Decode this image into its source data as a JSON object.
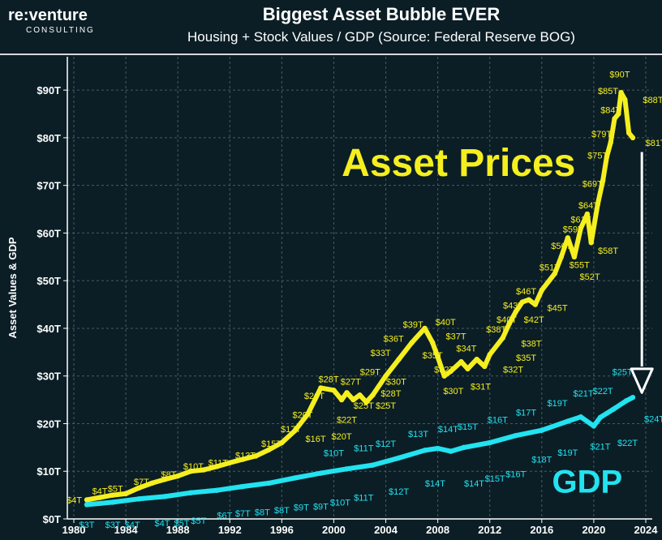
{
  "header": {
    "logo_main": "re:venture",
    "logo_sub": "CONSULTING",
    "title": "Biggest Asset Bubble EVER",
    "subtitle": "Housing + Stock Values / GDP (Source: Federal Reserve BOG)"
  },
  "colors": {
    "background": "#0b1e26",
    "asset": "#f5ef1f",
    "gdp": "#22e3f0",
    "grid": "#4a5a60",
    "text": "#ffffff"
  },
  "chart_data": {
    "type": "line",
    "ylabel": "Asset Values & GDP",
    "xlabel": "",
    "xlim": [
      1979.5,
      2024.5
    ],
    "ylim": [
      0,
      97
    ],
    "x_ticks": [
      1980,
      1984,
      1988,
      1992,
      1996,
      2000,
      2004,
      2008,
      2012,
      2016,
      2020,
      2024
    ],
    "y_ticks": [
      0,
      10,
      20,
      30,
      40,
      50,
      60,
      70,
      80,
      90
    ],
    "y_tick_labels": [
      "$0T",
      "$10T",
      "$20T",
      "$30T",
      "$40T",
      "$50T",
      "$60T",
      "$70T",
      "$80T",
      "$90T"
    ],
    "grid": true,
    "annotations": [
      {
        "text": "Asset Prices",
        "series": "asset"
      },
      {
        "text": "GDP",
        "series": "gdp"
      }
    ],
    "series": [
      {
        "key": "asset",
        "points": [
          [
            1981,
            4.0
          ],
          [
            1982,
            4.5
          ],
          [
            1983,
            5.0
          ],
          [
            1984,
            5.3
          ],
          [
            1985,
            6.5
          ],
          [
            1986,
            7.5
          ],
          [
            1987,
            8.3
          ],
          [
            1988,
            9.0
          ],
          [
            1989,
            10.0
          ],
          [
            1990,
            10.3
          ],
          [
            1991,
            11.0
          ],
          [
            1992,
            11.8
          ],
          [
            1993,
            12.5
          ],
          [
            1994,
            13.2
          ],
          [
            1995,
            14.5
          ],
          [
            1996,
            16.0
          ],
          [
            1997,
            18.5
          ],
          [
            1998,
            22.0
          ],
          [
            1999,
            27.5
          ],
          [
            2000,
            27.0
          ],
          [
            2000.6,
            25.0
          ],
          [
            2001,
            26.5
          ],
          [
            2001.5,
            25.0
          ],
          [
            2002,
            26.0
          ],
          [
            2002.5,
            24.5
          ],
          [
            2003,
            26.0
          ],
          [
            2004,
            30.0
          ],
          [
            2005,
            33.5
          ],
          [
            2006,
            37.0
          ],
          [
            2007,
            40.0
          ],
          [
            2007.6,
            37.0
          ],
          [
            2008,
            34.0
          ],
          [
            2008.5,
            30.0
          ],
          [
            2009,
            31.0
          ],
          [
            2009.8,
            33.0
          ],
          [
            2010.3,
            31.5
          ],
          [
            2011,
            33.5
          ],
          [
            2011.6,
            32.0
          ],
          [
            2012,
            34.5
          ],
          [
            2013,
            38.0
          ],
          [
            2013.5,
            41.0
          ],
          [
            2014,
            43.5
          ],
          [
            2014.5,
            45.5
          ],
          [
            2015,
            46.0
          ],
          [
            2015.5,
            45.0
          ],
          [
            2016,
            48.0
          ],
          [
            2017,
            51.5
          ],
          [
            2017.5,
            55.0
          ],
          [
            2018,
            59.0
          ],
          [
            2018.5,
            55.0
          ],
          [
            2019,
            61.0
          ],
          [
            2019.5,
            64.0
          ],
          [
            2019.8,
            58.0
          ],
          [
            2020.3,
            66.0
          ],
          [
            2020.7,
            71.0
          ],
          [
            2021,
            76.0
          ],
          [
            2021.3,
            79.0
          ],
          [
            2021.6,
            84.0
          ],
          [
            2021.9,
            85.0
          ],
          [
            2022.1,
            89.5
          ],
          [
            2022.4,
            88.0
          ],
          [
            2022.7,
            81.0
          ],
          [
            2023,
            80.0
          ]
        ],
        "labels": [
          {
            "x": 1981,
            "y": 4.0,
            "text": "$4T",
            "pos": "left"
          },
          {
            "x": 1982,
            "y": 4.5,
            "text": "$4T",
            "pos": "above"
          },
          {
            "x": 1983.2,
            "y": 5.0,
            "text": "$5T",
            "pos": "above"
          },
          {
            "x": 1985.2,
            "y": 6.5,
            "text": "$7T",
            "pos": "above"
          },
          {
            "x": 1987.3,
            "y": 8.0,
            "text": "$8T",
            "pos": "above"
          },
          {
            "x": 1989.2,
            "y": 9.7,
            "text": "$10T",
            "pos": "above"
          },
          {
            "x": 1991.1,
            "y": 10.5,
            "text": "$11T",
            "pos": "above"
          },
          {
            "x": 1993.2,
            "y": 12.0,
            "text": "$13T",
            "pos": "above"
          },
          {
            "x": 1995.2,
            "y": 14.5,
            "text": "$15T",
            "pos": "above"
          },
          {
            "x": 1996.7,
            "y": 17.5,
            "text": "$17T",
            "pos": "above"
          },
          {
            "x": 1997.6,
            "y": 20.5,
            "text": "$20T",
            "pos": "above"
          },
          {
            "x": 1998.5,
            "y": 24.5,
            "text": "$26T",
            "pos": "above"
          },
          {
            "x": 1999.6,
            "y": 28.0,
            "text": "$28T",
            "pos": "above"
          },
          {
            "x": 2001.3,
            "y": 27.5,
            "text": "$27T",
            "pos": "above"
          },
          {
            "x": 2002.8,
            "y": 29.5,
            "text": "$29T",
            "pos": "above"
          },
          {
            "x": 2003.6,
            "y": 33.5,
            "text": "$33T",
            "pos": "above"
          },
          {
            "x": 2004.6,
            "y": 36.5,
            "text": "$36T",
            "pos": "above"
          },
          {
            "x": 2006.1,
            "y": 39.5,
            "text": "$39T",
            "pos": "above"
          },
          {
            "x": 2008.6,
            "y": 40.0,
            "text": "$40T",
            "pos": "above"
          },
          {
            "x": 2010.2,
            "y": 34.5,
            "text": "$34T",
            "pos": "above"
          },
          {
            "x": 2012.5,
            "y": 38.5,
            "text": "$38T",
            "pos": "above"
          },
          {
            "x": 2013.3,
            "y": 40.5,
            "text": "$40T",
            "pos": "above"
          },
          {
            "x": 2013.8,
            "y": 43.5,
            "text": "$43T",
            "pos": "above"
          },
          {
            "x": 2014.8,
            "y": 46.5,
            "text": "$46T",
            "pos": "above"
          },
          {
            "x": 2016.6,
            "y": 51.5,
            "text": "$51T",
            "pos": "above"
          },
          {
            "x": 2017.5,
            "y": 56.0,
            "text": "$56T",
            "pos": "above"
          },
          {
            "x": 2018.4,
            "y": 59.5,
            "text": "$59T",
            "pos": "above"
          },
          {
            "x": 2019.0,
            "y": 61.5,
            "text": "$61T",
            "pos": "above"
          },
          {
            "x": 2019.6,
            "y": 64.5,
            "text": "$64T",
            "pos": "above"
          },
          {
            "x": 2019.9,
            "y": 69.0,
            "text": "$69T",
            "pos": "above"
          },
          {
            "x": 2020.3,
            "y": 75.0,
            "text": "$75T",
            "pos": "above"
          },
          {
            "x": 2020.6,
            "y": 79.5,
            "text": "$79T",
            "pos": "above"
          },
          {
            "x": 2021.3,
            "y": 84.5,
            "text": "$84T",
            "pos": "above"
          },
          {
            "x": 2021.1,
            "y": 88.5,
            "text": "$85T",
            "pos": "above"
          },
          {
            "x": 2022.0,
            "y": 92.0,
            "text": "$90T",
            "pos": "above"
          },
          {
            "x": 2023.4,
            "y": 88.0,
            "text": "$88T",
            "pos": "right"
          },
          {
            "x": 2023.6,
            "y": 79.0,
            "text": "$81T",
            "pos": "right"
          },
          {
            "x": 2001.0,
            "y": 19.5,
            "text": "$22T",
            "pos": "above"
          },
          {
            "x": 2000.6,
            "y": 16.0,
            "text": "$20T",
            "pos": "above"
          },
          {
            "x": 1998.6,
            "y": 15.5,
            "text": "$16T",
            "pos": "above"
          },
          {
            "x": 2002.3,
            "y": 22.5,
            "text": "$25T",
            "pos": "above"
          },
          {
            "x": 2004.0,
            "y": 22.5,
            "text": "$25T",
            "pos": "above"
          },
          {
            "x": 2004.4,
            "y": 25.0,
            "text": "$28T",
            "pos": "above"
          },
          {
            "x": 2004.8,
            "y": 27.5,
            "text": "$30T",
            "pos": "above"
          },
          {
            "x": 2007.6,
            "y": 33.0,
            "text": "$35T",
            "pos": "above"
          },
          {
            "x": 2009.4,
            "y": 37.0,
            "text": "$37T",
            "pos": "above"
          },
          {
            "x": 2008.5,
            "y": 30.0,
            "text": "$32T",
            "pos": "above"
          },
          {
            "x": 2009.2,
            "y": 25.5,
            "text": "$30T",
            "pos": "above"
          },
          {
            "x": 2011.3,
            "y": 26.5,
            "text": "$31T",
            "pos": "above"
          },
          {
            "x": 2013.8,
            "y": 30.0,
            "text": "$32T",
            "pos": "above"
          },
          {
            "x": 2014.8,
            "y": 32.5,
            "text": "$35T",
            "pos": "above"
          },
          {
            "x": 2015.2,
            "y": 35.5,
            "text": "$38T",
            "pos": "above"
          },
          {
            "x": 2015.4,
            "y": 40.5,
            "text": "$42T",
            "pos": "above"
          },
          {
            "x": 2017.2,
            "y": 43.0,
            "text": "$45T",
            "pos": "above"
          },
          {
            "x": 2019.7,
            "y": 49.5,
            "text": "$52T",
            "pos": "above"
          },
          {
            "x": 2018.9,
            "y": 52.0,
            "text": "$55T",
            "pos": "above"
          },
          {
            "x": 2021.1,
            "y": 55.0,
            "text": "$58T",
            "pos": "above"
          }
        ]
      },
      {
        "key": "gdp",
        "points": [
          [
            1981,
            3.0
          ],
          [
            1983,
            3.5
          ],
          [
            1985,
            4.2
          ],
          [
            1987,
            4.7
          ],
          [
            1989,
            5.5
          ],
          [
            1991,
            6.0
          ],
          [
            1993,
            6.8
          ],
          [
            1995,
            7.5
          ],
          [
            1997,
            8.6
          ],
          [
            1999,
            9.6
          ],
          [
            2001,
            10.5
          ],
          [
            2003,
            11.3
          ],
          [
            2005,
            12.8
          ],
          [
            2007,
            14.4
          ],
          [
            2008,
            14.8
          ],
          [
            2009,
            14.2
          ],
          [
            2010,
            15.0
          ],
          [
            2012,
            16.0
          ],
          [
            2014,
            17.5
          ],
          [
            2016,
            18.6
          ],
          [
            2018,
            20.5
          ],
          [
            2019,
            21.4
          ],
          [
            2020,
            19.5
          ],
          [
            2020.5,
            21.3
          ],
          [
            2021.5,
            23.0
          ],
          [
            2022.5,
            24.8
          ],
          [
            2023,
            25.5
          ]
        ],
        "labels": [
          {
            "x": 1981,
            "y": 0.3,
            "text": "$3T",
            "pos": "below"
          },
          {
            "x": 1983.0,
            "y": 0.3,
            "text": "$3T",
            "pos": "below"
          },
          {
            "x": 1984.5,
            "y": 0.3,
            "text": "$4T",
            "pos": "below"
          },
          {
            "x": 1986.8,
            "y": 0.7,
            "text": "$4T",
            "pos": "below"
          },
          {
            "x": 1988.3,
            "y": 0.7,
            "text": "$5T",
            "pos": "below"
          },
          {
            "x": 1989.6,
            "y": 1.2,
            "text": "$5T",
            "pos": "below"
          },
          {
            "x": 1991.6,
            "y": 2.3,
            "text": "$6T",
            "pos": "below"
          },
          {
            "x": 1993.0,
            "y": 2.7,
            "text": "$7T",
            "pos": "below"
          },
          {
            "x": 1994.5,
            "y": 3.0,
            "text": "$8T",
            "pos": "below"
          },
          {
            "x": 1996.0,
            "y": 3.4,
            "text": "$8T",
            "pos": "below"
          },
          {
            "x": 1997.5,
            "y": 4.0,
            "text": "$9T",
            "pos": "below"
          },
          {
            "x": 1999.0,
            "y": 4.2,
            "text": "$9T",
            "pos": "below"
          },
          {
            "x": 2000.5,
            "y": 5.0,
            "text": "$10T",
            "pos": "below"
          },
          {
            "x": 2002.3,
            "y": 6.0,
            "text": "$11T",
            "pos": "below"
          },
          {
            "x": 2005.0,
            "y": 7.3,
            "text": "$12T",
            "pos": "below"
          },
          {
            "x": 2002.3,
            "y": 13.5,
            "text": "$11T",
            "pos": "above"
          },
          {
            "x": 2000.0,
            "y": 12.5,
            "text": "$10T",
            "pos": "above"
          },
          {
            "x": 2004.0,
            "y": 14.5,
            "text": "$12T",
            "pos": "above"
          },
          {
            "x": 2006.5,
            "y": 16.5,
            "text": "$13T",
            "pos": "above"
          },
          {
            "x": 2008.8,
            "y": 17.5,
            "text": "$14T",
            "pos": "above"
          },
          {
            "x": 2010.3,
            "y": 18.0,
            "text": "$15T",
            "pos": "above"
          },
          {
            "x": 2012.6,
            "y": 19.5,
            "text": "$16T",
            "pos": "above"
          },
          {
            "x": 2014.8,
            "y": 21.0,
            "text": "$17T",
            "pos": "above"
          },
          {
            "x": 2017.2,
            "y": 23.0,
            "text": "$19T",
            "pos": "above"
          },
          {
            "x": 2019.2,
            "y": 25.0,
            "text": "$21T",
            "pos": "above"
          },
          {
            "x": 2020.7,
            "y": 25.5,
            "text": "$22T",
            "pos": "above"
          },
          {
            "x": 2022.2,
            "y": 29.5,
            "text": "$25T",
            "pos": "above"
          },
          {
            "x": 2007.8,
            "y": 9.0,
            "text": "$14T",
            "pos": "below"
          },
          {
            "x": 2010.8,
            "y": 9.0,
            "text": "$14T",
            "pos": "below"
          },
          {
            "x": 2012.4,
            "y": 10.0,
            "text": "$15T",
            "pos": "below"
          },
          {
            "x": 2014.0,
            "y": 11.0,
            "text": "$16T",
            "pos": "below"
          },
          {
            "x": 2016.0,
            "y": 14.0,
            "text": "$18T",
            "pos": "below"
          },
          {
            "x": 2018.0,
            "y": 15.5,
            "text": "$19T",
            "pos": "below"
          },
          {
            "x": 2020.5,
            "y": 16.8,
            "text": "$21T",
            "pos": "below"
          },
          {
            "x": 2022.6,
            "y": 17.5,
            "text": "$22T",
            "pos": "below"
          },
          {
            "x": 2023.5,
            "y": 21.0,
            "text": "$24T",
            "pos": "right"
          }
        ]
      }
    ]
  }
}
